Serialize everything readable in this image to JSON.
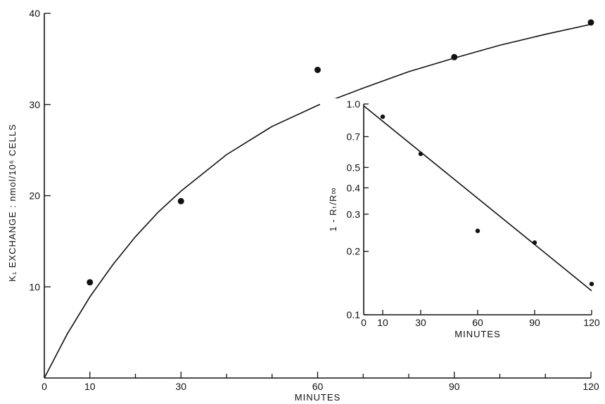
{
  "chart_data": [
    {
      "type": "scatter",
      "xlabel": "MINUTES",
      "ylabel": "K₁ EXCHANGE : nmol/10⁶ CELLS",
      "xlim": [
        0,
        120
      ],
      "ylim": [
        0,
        40
      ],
      "x_ticks": [
        0,
        10,
        30,
        60,
        90,
        120
      ],
      "x_minor_ticks": [
        20,
        40,
        50,
        70,
        80,
        100,
        110
      ],
      "y_ticks": [
        10,
        20,
        30,
        40
      ],
      "y_tick_labels": [
        "10",
        "20",
        "30",
        "40"
      ],
      "origin_label": "0",
      "grid": false,
      "series": [
        {
          "x": [
            10,
            30,
            60,
            90,
            120
          ],
          "y": [
            10.5,
            19.4,
            33.8,
            35.2,
            39.0
          ]
        }
      ],
      "fitted_curve": {
        "x": [
          0,
          5,
          10,
          15,
          20,
          25,
          30,
          40,
          50,
          60,
          70,
          80,
          90,
          100,
          110,
          120
        ],
        "y": [
          0,
          4.8,
          8.9,
          12.4,
          15.5,
          18.2,
          20.5,
          24.5,
          27.6,
          29.9,
          31.8,
          33.6,
          35.1,
          36.5,
          37.7,
          38.8
        ]
      }
    },
    {
      "type": "scatter",
      "inset": true,
      "xlabel": "MINUTES",
      "ylabel": "1 - Rₜ/R∞",
      "y_scale": "log",
      "xlim": [
        0,
        120
      ],
      "ylim": [
        0.1,
        1.0
      ],
      "x_ticks": [
        0,
        10,
        30,
        60,
        90,
        120
      ],
      "y_ticks": [
        0.1,
        0.2,
        0.3,
        0.4,
        0.5,
        0.7,
        1.0
      ],
      "y_tick_labels": [
        "0.1",
        "0.2",
        "0.3",
        "0.4",
        "0.5",
        "0.7",
        "1.0"
      ],
      "grid": false,
      "series": [
        {
          "x": [
            10,
            30,
            60,
            90,
            120
          ],
          "y": [
            0.87,
            0.58,
            0.25,
            0.22,
            0.14
          ]
        }
      ],
      "fitted_line": {
        "x": [
          0,
          120
        ],
        "y": [
          0.98,
          0.13
        ]
      }
    }
  ]
}
